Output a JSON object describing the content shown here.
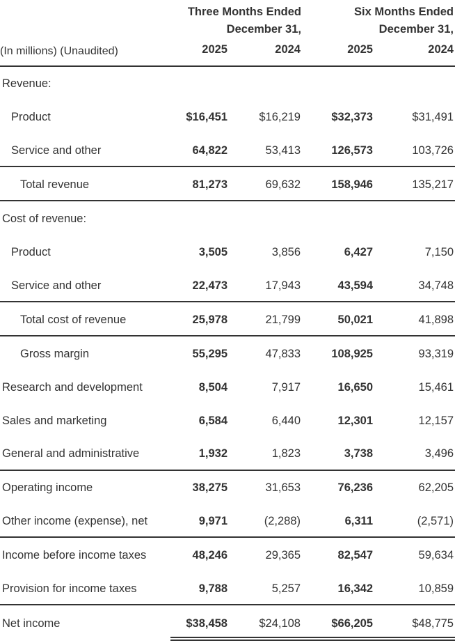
{
  "header": {
    "group1": [
      "Three Months Ended",
      "December 31,"
    ],
    "group2": [
      "Six Months Ended",
      "December 31,"
    ],
    "unit_label": "(In millions) (Unaudited)",
    "years": [
      "2025",
      "2024",
      "2025",
      "2024"
    ]
  },
  "rows": [
    {
      "label": "Revenue:",
      "values": [
        "",
        "",
        "",
        ""
      ]
    },
    {
      "label": "Product",
      "values": [
        "$16,451",
        "$16,219",
        "$32,373",
        "$31,491"
      ]
    },
    {
      "label": "Service and other",
      "values": [
        "64,822",
        "53,413",
        "126,573",
        "103,726"
      ]
    },
    {
      "label": "Total revenue",
      "values": [
        "81,273",
        "69,632",
        "158,946",
        "135,217"
      ]
    },
    {
      "label": "Cost of revenue:",
      "values": [
        "",
        "",
        "",
        ""
      ]
    },
    {
      "label": "Product",
      "values": [
        "3,505",
        "3,856",
        "6,427",
        "7,150"
      ]
    },
    {
      "label": "Service and other",
      "values": [
        "22,473",
        "17,943",
        "43,594",
        "34,748"
      ]
    },
    {
      "label": "Total cost of revenue",
      "values": [
        "25,978",
        "21,799",
        "50,021",
        "41,898"
      ]
    },
    {
      "label": "Gross margin",
      "values": [
        "55,295",
        "47,833",
        "108,925",
        "93,319"
      ]
    },
    {
      "label": "Research and development",
      "values": [
        "8,504",
        "7,917",
        "16,650",
        "15,461"
      ]
    },
    {
      "label": "Sales and marketing",
      "values": [
        "6,584",
        "6,440",
        "12,301",
        "12,157"
      ]
    },
    {
      "label": "General and administrative",
      "values": [
        "1,932",
        "1,823",
        "3,738",
        "3,496"
      ]
    },
    {
      "label": "Operating income",
      "values": [
        "38,275",
        "31,653",
        "76,236",
        "62,205"
      ]
    },
    {
      "label": "Other income (expense), net",
      "values": [
        "9,971",
        "(2,288)",
        "6,311",
        "(2,571)"
      ]
    },
    {
      "label": "Income before income taxes",
      "values": [
        "48,246",
        "29,365",
        "82,547",
        "59,634"
      ]
    },
    {
      "label": "Provision for income taxes",
      "values": [
        "9,788",
        "5,257",
        "16,342",
        "10,859"
      ]
    },
    {
      "label": "Net income",
      "values": [
        "$38,458",
        "$24,108",
        "$66,205",
        "$48,775"
      ]
    }
  ]
}
